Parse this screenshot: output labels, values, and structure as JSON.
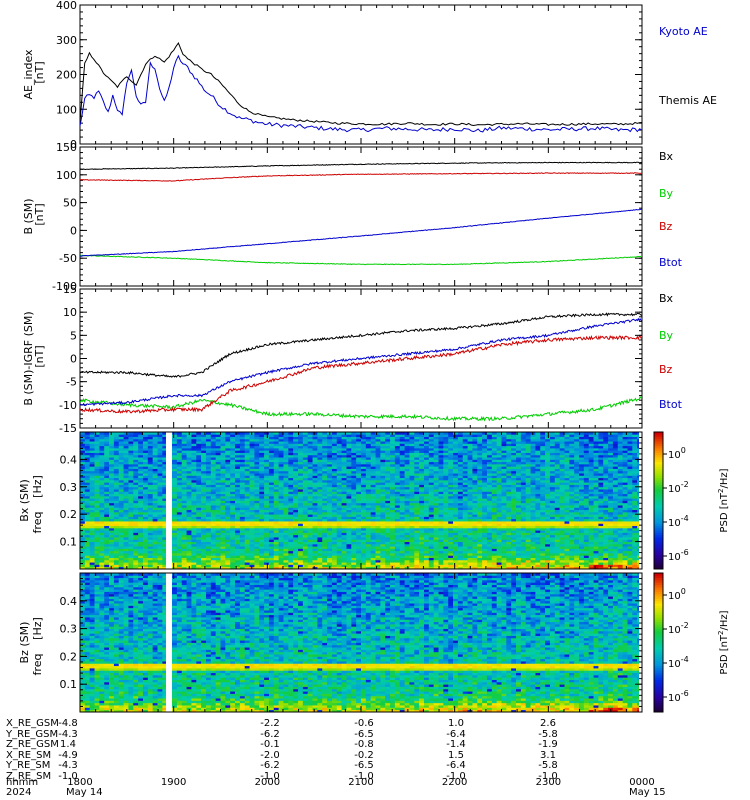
{
  "chart_data": [
    {
      "type": "line",
      "ylabel": "AE_index",
      "yunit": "[nT]",
      "ylim": [
        0,
        400
      ],
      "yticks": [
        0,
        100,
        200,
        300,
        400
      ],
      "series": [
        {
          "name": "Kyoto AE",
          "color": "#0000cc",
          "x": [
            0,
            0.05,
            0.1,
            0.15,
            0.2,
            0.25,
            0.3,
            0.35,
            0.4,
            0.45,
            0.5,
            0.55,
            0.6,
            0.65,
            0.7,
            0.75,
            0.8,
            0.85,
            0.9,
            0.95,
            1.0,
            1.05,
            1.1,
            1.15,
            1.2,
            1.25,
            1.3,
            1.35,
            1.4,
            1.45,
            1.5,
            1.6,
            1.7,
            1.8,
            1.9,
            2.0,
            2.25,
            2.5,
            2.75,
            3.0,
            3.25,
            3.5,
            3.75,
            4.0,
            4.25,
            4.5,
            4.75,
            5.0,
            5.25,
            5.5,
            5.75,
            6.0
          ],
          "y": [
            50,
            130,
            140,
            135,
            150,
            120,
            90,
            140,
            100,
            80,
            180,
            210,
            140,
            110,
            120,
            230,
            220,
            160,
            120,
            160,
            220,
            250,
            230,
            220,
            200,
            185,
            165,
            150,
            140,
            125,
            110,
            90,
            75,
            70,
            62,
            57,
            52,
            47,
            42,
            40,
            45,
            43,
            40,
            44,
            38,
            46,
            44,
            41,
            43,
            45,
            40,
            42
          ]
        },
        {
          "name": "Themis AE",
          "color": "#000000",
          "x": [
            0,
            0.05,
            0.1,
            0.15,
            0.2,
            0.25,
            0.3,
            0.4,
            0.5,
            0.6,
            0.7,
            0.8,
            0.9,
            1.0,
            1.05,
            1.1,
            1.15,
            1.2,
            1.3,
            1.4,
            1.5,
            1.6,
            1.7,
            1.8,
            1.9,
            2.0,
            2.25,
            2.5,
            2.75,
            3.0,
            3.25,
            3.5,
            3.75,
            4.0,
            4.25,
            4.5,
            4.75,
            5.0,
            5.25,
            5.5,
            5.75,
            6.0
          ],
          "y": [
            60,
            230,
            260,
            245,
            225,
            205,
            190,
            165,
            195,
            170,
            230,
            255,
            235,
            270,
            290,
            260,
            245,
            235,
            215,
            200,
            175,
            145,
            115,
            95,
            85,
            78,
            70,
            65,
            60,
            58,
            57,
            60,
            56,
            58,
            55,
            57,
            58,
            56,
            57,
            58,
            57,
            60
          ]
        }
      ]
    },
    {
      "type": "line",
      "ylabel": "B (SM)",
      "yunit": "[nT]",
      "ylim": [
        -100,
        150
      ],
      "yticks": [
        -100,
        -50,
        0,
        50,
        100,
        150
      ],
      "series": [
        {
          "name": "Bx",
          "color": "#000000",
          "x": [
            0,
            1,
            2,
            3,
            4,
            5,
            6
          ],
          "y": [
            110,
            112,
            116,
            119,
            121,
            122,
            122
          ]
        },
        {
          "name": "By",
          "color": "#00cc00",
          "x": [
            0,
            1,
            2,
            3,
            4,
            5,
            6
          ],
          "y": [
            -45,
            -50,
            -58,
            -61,
            -61,
            -56,
            -47
          ]
        },
        {
          "name": "Bz",
          "color": "#cc0000",
          "x": [
            0,
            1,
            1.5,
            2,
            3,
            4,
            5,
            6
          ],
          "y": [
            91,
            89,
            94,
            98,
            101,
            102,
            103,
            103
          ]
        },
        {
          "name": "Btot",
          "color": "#0000cc",
          "x": [
            0,
            1,
            2,
            3,
            4,
            5,
            6
          ],
          "y": [
            -46,
            -38,
            -24,
            -10,
            5,
            22,
            38
          ]
        }
      ]
    },
    {
      "type": "line",
      "ylabel": "B (SM)-IGRF (SM)",
      "yunit": "[nT]",
      "ylim": [
        -15,
        15
      ],
      "yticks": [
        -15,
        -10,
        -5,
        0,
        5,
        10,
        15
      ],
      "series": [
        {
          "name": "Bx",
          "color": "#000000",
          "x": [
            0,
            0.5,
            1,
            1.3,
            1.6,
            2,
            2.5,
            3,
            3.5,
            4,
            4.5,
            5,
            5.5,
            6
          ],
          "y": [
            -3,
            -3,
            -4,
            -3,
            1,
            3,
            4,
            5,
            6,
            6.5,
            7.5,
            9,
            9.5,
            9.5
          ]
        },
        {
          "name": "By",
          "color": "#00cc00",
          "x": [
            0,
            0.5,
            1,
            1.3,
            1.6,
            2,
            2.5,
            3,
            3.5,
            4,
            4.5,
            5,
            5.5,
            6
          ],
          "y": [
            -9,
            -10,
            -10.5,
            -9,
            -10,
            -12,
            -12,
            -12.5,
            -12.5,
            -13,
            -13,
            -12,
            -11,
            -8.5
          ]
        },
        {
          "name": "Bz",
          "color": "#cc0000",
          "x": [
            0,
            0.5,
            1,
            1.3,
            1.6,
            2,
            2.5,
            3,
            3.5,
            4,
            4.5,
            5,
            5.5,
            6
          ],
          "y": [
            -11,
            -11.5,
            -11,
            -11,
            -7,
            -5,
            -2,
            -1,
            0,
            1,
            3,
            4,
            4.5,
            4.5
          ]
        },
        {
          "name": "Btot",
          "color": "#0000cc",
          "x": [
            0,
            0.5,
            1,
            1.3,
            1.6,
            2,
            2.5,
            3,
            3.5,
            4,
            4.5,
            5,
            5.5,
            6
          ],
          "y": [
            -10,
            -9.5,
            -8,
            -8,
            -5,
            -3,
            -1,
            0,
            1,
            2,
            4,
            5,
            7,
            8.5
          ]
        }
      ]
    },
    {
      "type": "heatmap",
      "ylabel": "Bx (SM)",
      "ylabel2": "freq",
      "yunit": "[Hz]",
      "ylim": [
        0,
        0.5
      ],
      "yticks": [
        0.1,
        0.2,
        0.3,
        0.4
      ],
      "colorbar_label": "PSD [nT",
      "colorbar_sup": "2",
      "colorbar_unit": "/Hz]",
      "colorbar_ticks": [
        {
          "base": "10",
          "exp": "0"
        },
        {
          "base": "10",
          "exp": "-2"
        },
        {
          "base": "10",
          "exp": "-4"
        },
        {
          "base": "10",
          "exp": "-6"
        }
      ]
    },
    {
      "type": "heatmap",
      "ylabel": "Bz (SM)",
      "ylabel2": "freq",
      "yunit": "[Hz]",
      "ylim": [
        0,
        0.5
      ],
      "yticks": [
        0.1,
        0.2,
        0.3,
        0.4
      ],
      "colorbar_label": "PSD [nT",
      "colorbar_sup": "2",
      "colorbar_unit": "/Hz]",
      "colorbar_ticks": [
        {
          "base": "10",
          "exp": "0"
        },
        {
          "base": "10",
          "exp": "-2"
        },
        {
          "base": "10",
          "exp": "-4"
        },
        {
          "base": "10",
          "exp": "-6"
        }
      ]
    }
  ],
  "xaxis": {
    "hour_ticks": [
      "1800",
      "1900",
      "2000",
      "2100",
      "2200",
      "2300",
      "0000"
    ],
    "date_start": "May 14",
    "date_end": "May 15",
    "year": "2024",
    "row_label": "hhmm"
  },
  "ephemeris": [
    {
      "label": "X_RE_GSM",
      "values": [
        "-4.8",
        "-2.2",
        "-0.6",
        "1.0",
        "2.6"
      ]
    },
    {
      "label": "Y_RE_GSM",
      "values": [
        "-4.3",
        "-6.2",
        "-6.5",
        "-6.4",
        "-5.8"
      ]
    },
    {
      "label": "Z_RE_GSM",
      "values": [
        "1.4",
        "-0.1",
        "-0.8",
        "-1.4",
        "-1.9"
      ]
    },
    {
      "label": "X_RE_SM",
      "values": [
        "-4.9",
        "-2.0",
        "-0.2",
        "1.5",
        "3.1"
      ]
    },
    {
      "label": "Y_RE_SM",
      "values": [
        "-4.3",
        "-6.2",
        "-6.5",
        "-6.4",
        "-5.8"
      ]
    },
    {
      "label": "Z_RE_SM",
      "values": [
        "-1.0",
        "-1.0",
        "-1.0",
        "-1.0",
        "-1.0"
      ]
    }
  ]
}
